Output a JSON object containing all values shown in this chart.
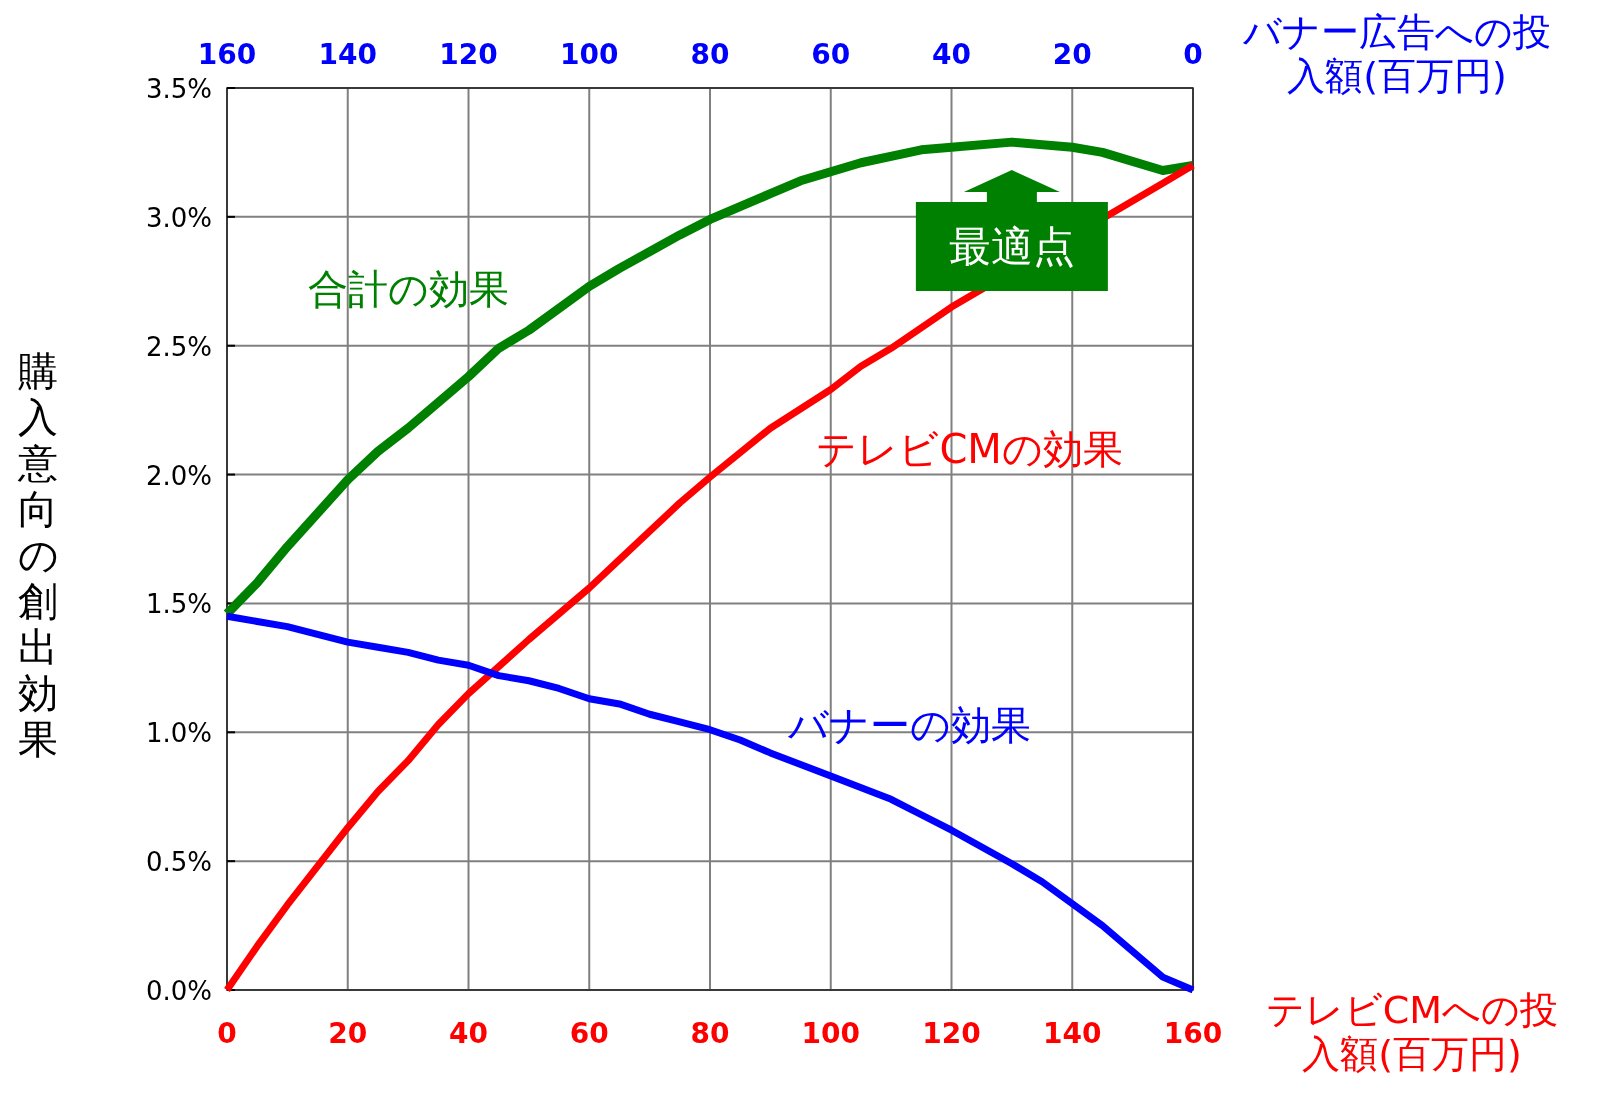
{
  "chart_data": {
    "type": "line",
    "xlabel": "テレビCMへの投入額(百万円)",
    "x2label": "バナー広告への投入額(百万円)",
    "ylabel": "購入意向の創出効果",
    "xlim": [
      0,
      160
    ],
    "xticks": [
      0,
      20,
      40,
      60,
      80,
      100,
      120,
      140,
      160
    ],
    "x2lim": [
      160,
      0
    ],
    "x2ticks": [
      160,
      140,
      120,
      100,
      80,
      60,
      40,
      20,
      0
    ],
    "ylim": [
      0,
      3.5
    ],
    "yticks": [
      {
        "value": 0,
        "label": "0.0%"
      },
      {
        "value": 0.5,
        "label": "0.5%"
      },
      {
        "value": 1,
        "label": "1.0%"
      },
      {
        "value": 1.5,
        "label": "1.5%"
      },
      {
        "value": 2,
        "label": "2.0%"
      },
      {
        "value": 2.5,
        "label": "2.5%"
      },
      {
        "value": 3,
        "label": "3.0%"
      },
      {
        "value": 3.5,
        "label": "3.5%"
      }
    ],
    "grid": true,
    "legend": false,
    "annotations": [
      {
        "text": "最適点",
        "x": 130,
        "y": 3.29
      }
    ],
    "series": [
      {
        "name": "合計の効果",
        "color": "#008000",
        "x": [
          0,
          5,
          10,
          20,
          25,
          30,
          40,
          45,
          50,
          60,
          65,
          75,
          80,
          90,
          95,
          105,
          115,
          120,
          130,
          140,
          145,
          155,
          160
        ],
        "values": [
          1.46,
          1.58,
          1.72,
          1.98,
          2.09,
          2.18,
          2.38,
          2.49,
          2.56,
          2.73,
          2.8,
          2.93,
          2.99,
          3.09,
          3.14,
          3.21,
          3.26,
          3.27,
          3.29,
          3.27,
          3.25,
          3.18,
          3.2
        ]
      },
      {
        "name": "テレビCMの効果",
        "color": "#ff0000",
        "x": [
          0,
          5,
          10,
          20,
          25,
          30,
          35,
          40,
          50,
          60,
          65,
          75,
          80,
          90,
          100,
          105,
          110,
          120,
          155,
          160
        ],
        "values": [
          0,
          0.17,
          0.33,
          0.63,
          0.77,
          0.89,
          1.03,
          1.15,
          1.36,
          1.56,
          1.67,
          1.89,
          1.99,
          2.18,
          2.33,
          2.42,
          2.49,
          2.65,
          3.13,
          3.2
        ]
      },
      {
        "name": "バナーの効果",
        "color": "#0000ff",
        "x": [
          0,
          5,
          10,
          20,
          25,
          30,
          35,
          40,
          45,
          50,
          55,
          60,
          65,
          70,
          75,
          80,
          85,
          90,
          100,
          110,
          115,
          120,
          130,
          135,
          145,
          155,
          160
        ],
        "values": [
          1.45,
          1.43,
          1.41,
          1.35,
          1.33,
          1.31,
          1.28,
          1.26,
          1.22,
          1.2,
          1.17,
          1.13,
          1.11,
          1.07,
          1.04,
          1.01,
          0.97,
          0.92,
          0.83,
          0.74,
          0.68,
          0.62,
          0.49,
          0.42,
          0.25,
          0.05,
          0
        ]
      }
    ]
  }
}
